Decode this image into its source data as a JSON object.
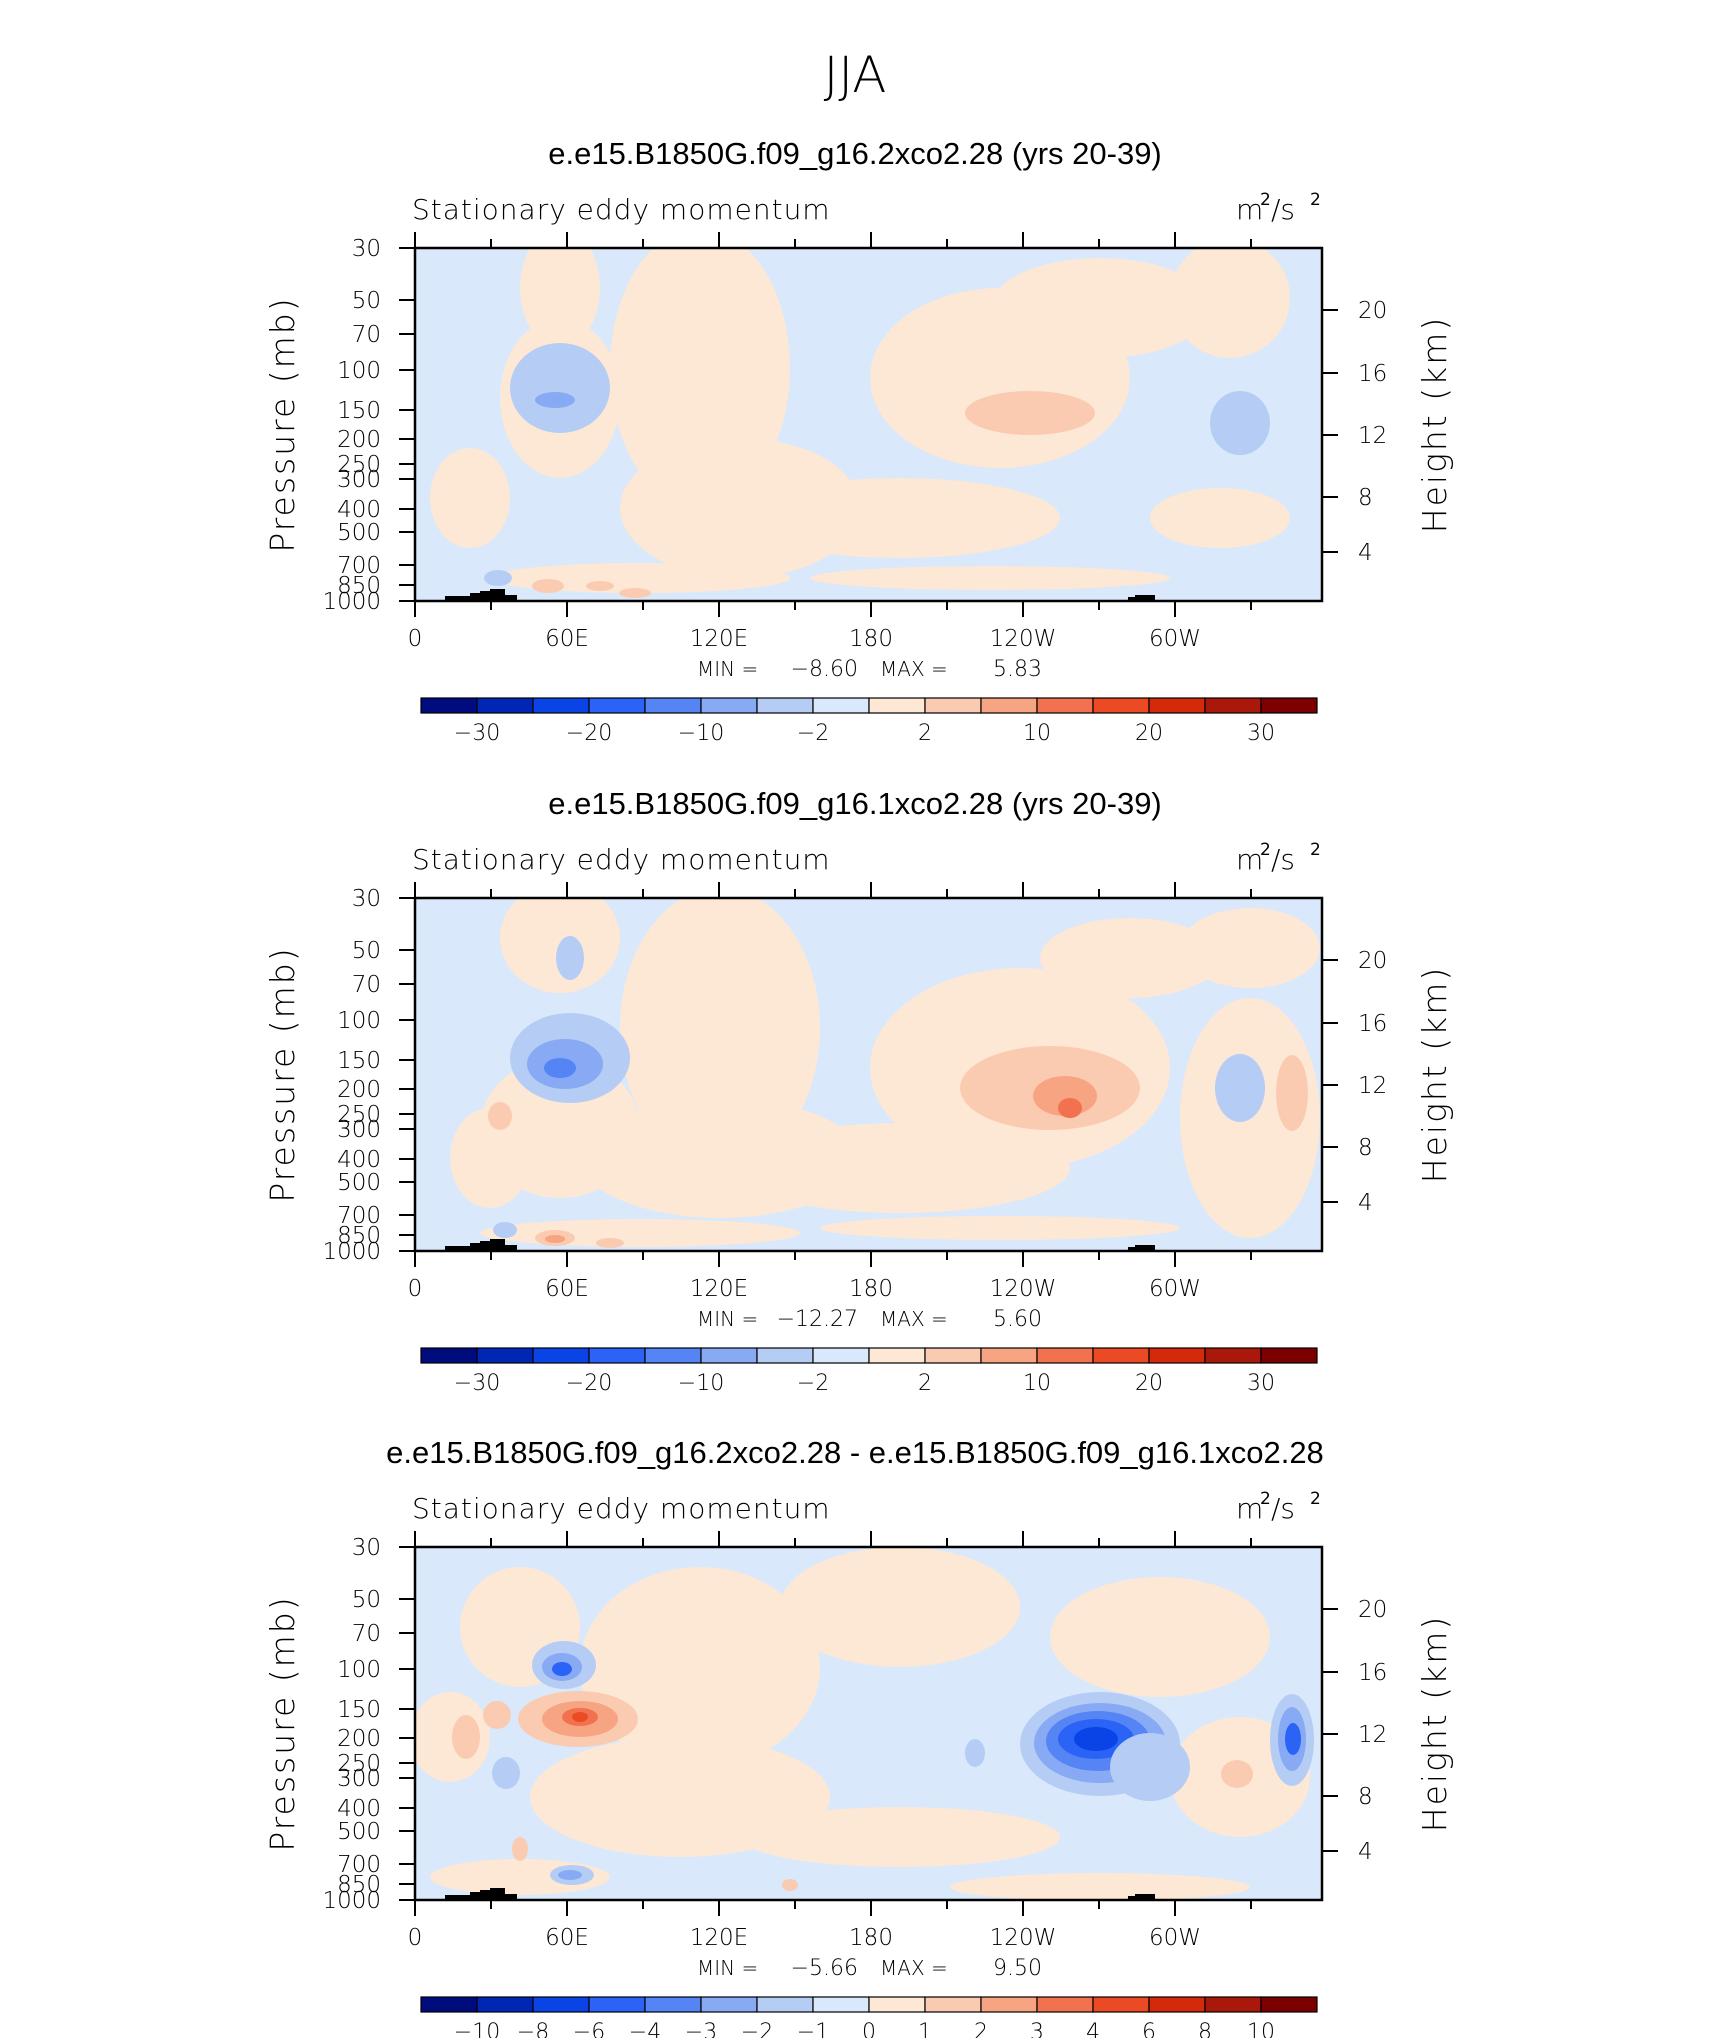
{
  "figure_title": "JJA",
  "chart_data": [
    {
      "type": "contour",
      "title": "e.e15.B1850G.f09_g16.2xco2.28 (yrs 20-39)",
      "left_label": "Stationary eddy momentum",
      "units_base": "m",
      "units_exp1": "2",
      "units_mid": "/s",
      "units_exp2": "2",
      "ylabel": "Pressure (mb)",
      "ylabel_right": "Height (km)",
      "x_ticks": [
        "0",
        "60E",
        "120E",
        "180",
        "120W",
        "60W"
      ],
      "y_ticks": [
        "30",
        "50",
        "70",
        "100",
        "150",
        "200",
        "250",
        "300",
        "400",
        "500",
        "700",
        "850",
        "1000"
      ],
      "y_right_ticks": [
        "20",
        "16",
        "12",
        "8",
        "4"
      ],
      "min_label": "MIN =",
      "min_value": "−8.60",
      "max_label": "MAX =",
      "max_value": "5.83",
      "colorbar_levels": [
        "−30",
        "−20",
        "−10",
        "−2",
        "2",
        "10",
        "20",
        "30"
      ],
      "colorbar_colors": [
        "#000c7d",
        "#0026b5",
        "#0a44e6",
        "#2a63f5",
        "#5585f5",
        "#88aaf4",
        "#b5cdf5",
        "#d9e8fa",
        "#fde8d6",
        "#fbcbb1",
        "#f7a482",
        "#f2724f",
        "#ec4a25",
        "#d42a0a",
        "#a9180a",
        "#7d0000"
      ]
    },
    {
      "type": "contour",
      "title": "e.e15.B1850G.f09_g16.1xco2.28 (yrs 20-39)",
      "left_label": "Stationary eddy momentum",
      "units_base": "m",
      "units_exp1": "2",
      "units_mid": "/s",
      "units_exp2": "2",
      "ylabel": "Pressure (mb)",
      "ylabel_right": "Height (km)",
      "x_ticks": [
        "0",
        "60E",
        "120E",
        "180",
        "120W",
        "60W"
      ],
      "y_ticks": [
        "30",
        "50",
        "70",
        "100",
        "150",
        "200",
        "250",
        "300",
        "400",
        "500",
        "700",
        "850",
        "1000"
      ],
      "y_right_ticks": [
        "20",
        "16",
        "12",
        "8",
        "4"
      ],
      "min_label": "MIN =",
      "min_value": "−12.27",
      "max_label": "MAX =",
      "max_value": "5.60",
      "colorbar_levels": [
        "−30",
        "−20",
        "−10",
        "−2",
        "2",
        "10",
        "20",
        "30"
      ],
      "colorbar_colors": [
        "#000c7d",
        "#0026b5",
        "#0a44e6",
        "#2a63f5",
        "#5585f5",
        "#88aaf4",
        "#b5cdf5",
        "#d9e8fa",
        "#fde8d6",
        "#fbcbb1",
        "#f7a482",
        "#f2724f",
        "#ec4a25",
        "#d42a0a",
        "#a9180a",
        "#7d0000"
      ]
    },
    {
      "type": "contour",
      "title": "e.e15.B1850G.f09_g16.2xco2.28 - e.e15.B1850G.f09_g16.1xco2.28",
      "left_label": "Stationary eddy momentum",
      "units_base": "m",
      "units_exp1": "2",
      "units_mid": "/s",
      "units_exp2": "2",
      "ylabel": "Pressure (mb)",
      "ylabel_right": "Height (km)",
      "x_ticks": [
        "0",
        "60E",
        "120E",
        "180",
        "120W",
        "60W"
      ],
      "y_ticks": [
        "30",
        "50",
        "70",
        "100",
        "150",
        "200",
        "250",
        "300",
        "400",
        "500",
        "700",
        "850",
        "1000"
      ],
      "y_right_ticks": [
        "20",
        "16",
        "12",
        "8",
        "4"
      ],
      "min_label": "MIN =",
      "min_value": "−5.66",
      "max_label": "MAX =",
      "max_value": "9.50",
      "colorbar_levels": [
        "−10",
        "−8",
        "−6",
        "−4",
        "−3",
        "−2",
        "−1",
        "0",
        "1",
        "2",
        "3",
        "4",
        "6",
        "8",
        "10"
      ],
      "colorbar_colors": [
        "#000c7d",
        "#0026b5",
        "#0a44e6",
        "#2a63f5",
        "#5585f5",
        "#88aaf4",
        "#b5cdf5",
        "#d9e8fa",
        "#fde8d6",
        "#fbcbb1",
        "#f7a482",
        "#f2724f",
        "#ec4a25",
        "#d42a0a",
        "#a9180a",
        "#7d0000"
      ]
    }
  ]
}
